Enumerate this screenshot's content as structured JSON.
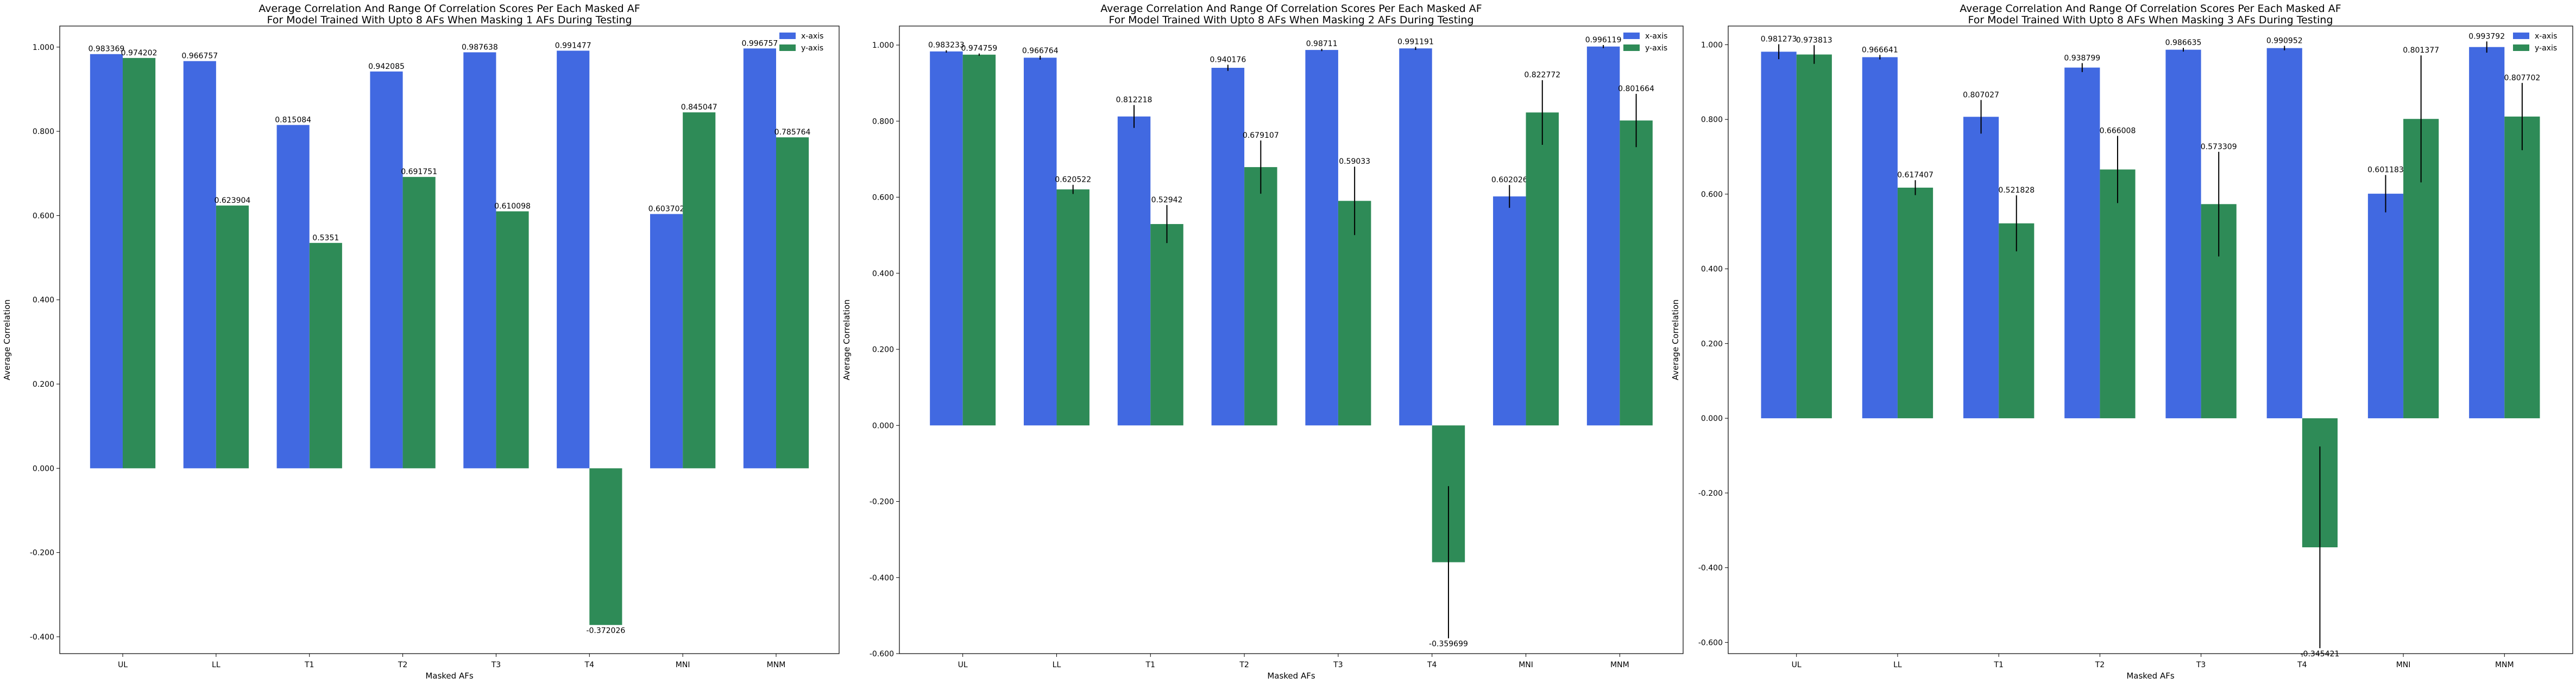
{
  "chart_data": [
    {
      "type": "bar",
      "title": "Average Correlation And Range Of Correlation Scores Per Each Masked AF",
      "subtitle": "For Model Trained With Upto 8 AFs When Masking 1 AFs During Testing",
      "xlabel": "Masked AFs",
      "ylabel": "Average Correlation",
      "ylim": [
        -0.44,
        1.05
      ],
      "yticks": [
        "1.000",
        "0.800",
        "0.600",
        "0.400",
        "0.200",
        "0.000",
        "-0.200",
        "-0.400"
      ],
      "categories": [
        "UL",
        "LL",
        "T1",
        "T2",
        "T3",
        "T4",
        "MNI",
        "MNM"
      ],
      "legend": "top-right",
      "series": [
        {
          "name": "x-axis",
          "color": "#4169e1",
          "values": [
            0.983369,
            0.966757,
            0.815084,
            0.942085,
            0.987638,
            0.991477,
            0.603702,
            0.996757
          ],
          "labels": [
            "0.983369",
            "0.966757",
            "0.815084",
            "0.942085",
            "0.987638",
            "0.991477",
            "0.603702",
            "0.996757"
          ]
        },
        {
          "name": "y-axis",
          "color": "#2e8b57",
          "values": [
            0.974202,
            0.623904,
            0.5351,
            0.691751,
            0.610098,
            -0.372026,
            0.845047,
            0.785764
          ],
          "labels": [
            "0.974202",
            "0.623904",
            "0.5351",
            "0.691751",
            "0.610098",
            "-0.372026",
            "0.845047",
            "0.785764"
          ]
        }
      ]
    },
    {
      "type": "bar",
      "title": "Average Correlation And Range Of Correlation Scores Per Each Masked AF",
      "subtitle": "For Model Trained With Upto 8 AFs When Masking 2 AFs During Testing",
      "xlabel": "Masked AFs",
      "ylabel": "Average Correlation",
      "ylim": [
        -0.6,
        1.05
      ],
      "yticks": [
        "1.000",
        "0.800",
        "0.600",
        "0.400",
        "0.200",
        "0.000",
        "-0.200",
        "-0.400",
        "-0.600"
      ],
      "categories": [
        "UL",
        "LL",
        "T1",
        "T2",
        "T3",
        "T4",
        "MNI",
        "MNM"
      ],
      "legend": "top-right",
      "series": [
        {
          "name": "x-axis",
          "color": "#4169e1",
          "values": [
            0.983233,
            0.966764,
            0.812218,
            0.940176,
            0.98711,
            0.991191,
            0.602026,
            0.996119
          ],
          "labels": [
            "0.983233",
            "0.966764",
            "0.812218",
            "0.940176",
            "0.98711",
            "0.991191",
            "0.602026",
            "0.996119"
          ],
          "err": [
            0.003,
            0.005,
            0.03,
            0.008,
            0.003,
            0.004,
            0.03,
            0.004
          ]
        },
        {
          "name": "y-axis",
          "color": "#2e8b57",
          "values": [
            0.974759,
            0.620522,
            0.52942,
            0.679107,
            0.59033,
            -0.359699,
            0.822772,
            0.801664
          ],
          "labels": [
            "0.974759",
            "0.620522",
            "0.52942",
            "0.679107",
            "0.59033",
            "-0.359699",
            "0.822772",
            "0.801664"
          ],
          "err": [
            0.003,
            0.012,
            0.05,
            0.07,
            0.09,
            0.2,
            0.085,
            0.07
          ]
        }
      ]
    },
    {
      "type": "bar",
      "title": "Average Correlation And Range Of Correlation Scores Per Each Masked AF",
      "subtitle": "For Model Trained With Upto 8 AFs When Masking 3 AFs During Testing",
      "xlabel": "Masked AFs",
      "ylabel": "Average Correlation",
      "ylim": [
        -0.63,
        1.05
      ],
      "yticks": [
        "1.000",
        "0.800",
        "0.600",
        "0.400",
        "0.200",
        "0.000",
        "-0.200",
        "-0.400",
        "-0.600"
      ],
      "categories": [
        "UL",
        "LL",
        "T1",
        "T2",
        "T3",
        "T4",
        "MNI",
        "MNM"
      ],
      "legend": "top-right",
      "series": [
        {
          "name": "x-axis",
          "color": "#4169e1",
          "values": [
            0.981273,
            0.966641,
            0.807027,
            0.938799,
            0.986635,
            0.990952,
            0.601183,
            0.993792
          ],
          "labels": [
            "0.981273",
            "0.966641",
            "0.807027",
            "0.938799",
            "0.986635",
            "0.990952",
            "0.601183",
            "0.993792"
          ],
          "err": [
            0.02,
            0.006,
            0.045,
            0.012,
            0.005,
            0.006,
            0.05,
            0.015
          ]
        },
        {
          "name": "y-axis",
          "color": "#2e8b57",
          "values": [
            0.973813,
            0.617407,
            0.521828,
            0.666008,
            0.573309,
            -0.345421,
            0.801377,
            0.807702
          ],
          "labels": [
            "0.973813",
            "0.617407",
            "0.521828",
            "0.666008",
            "0.573309",
            "-0.345421",
            "0.801377",
            "0.807702"
          ],
          "err": [
            0.025,
            0.02,
            0.075,
            0.09,
            0.14,
            0.27,
            0.17,
            0.09
          ]
        }
      ]
    }
  ]
}
